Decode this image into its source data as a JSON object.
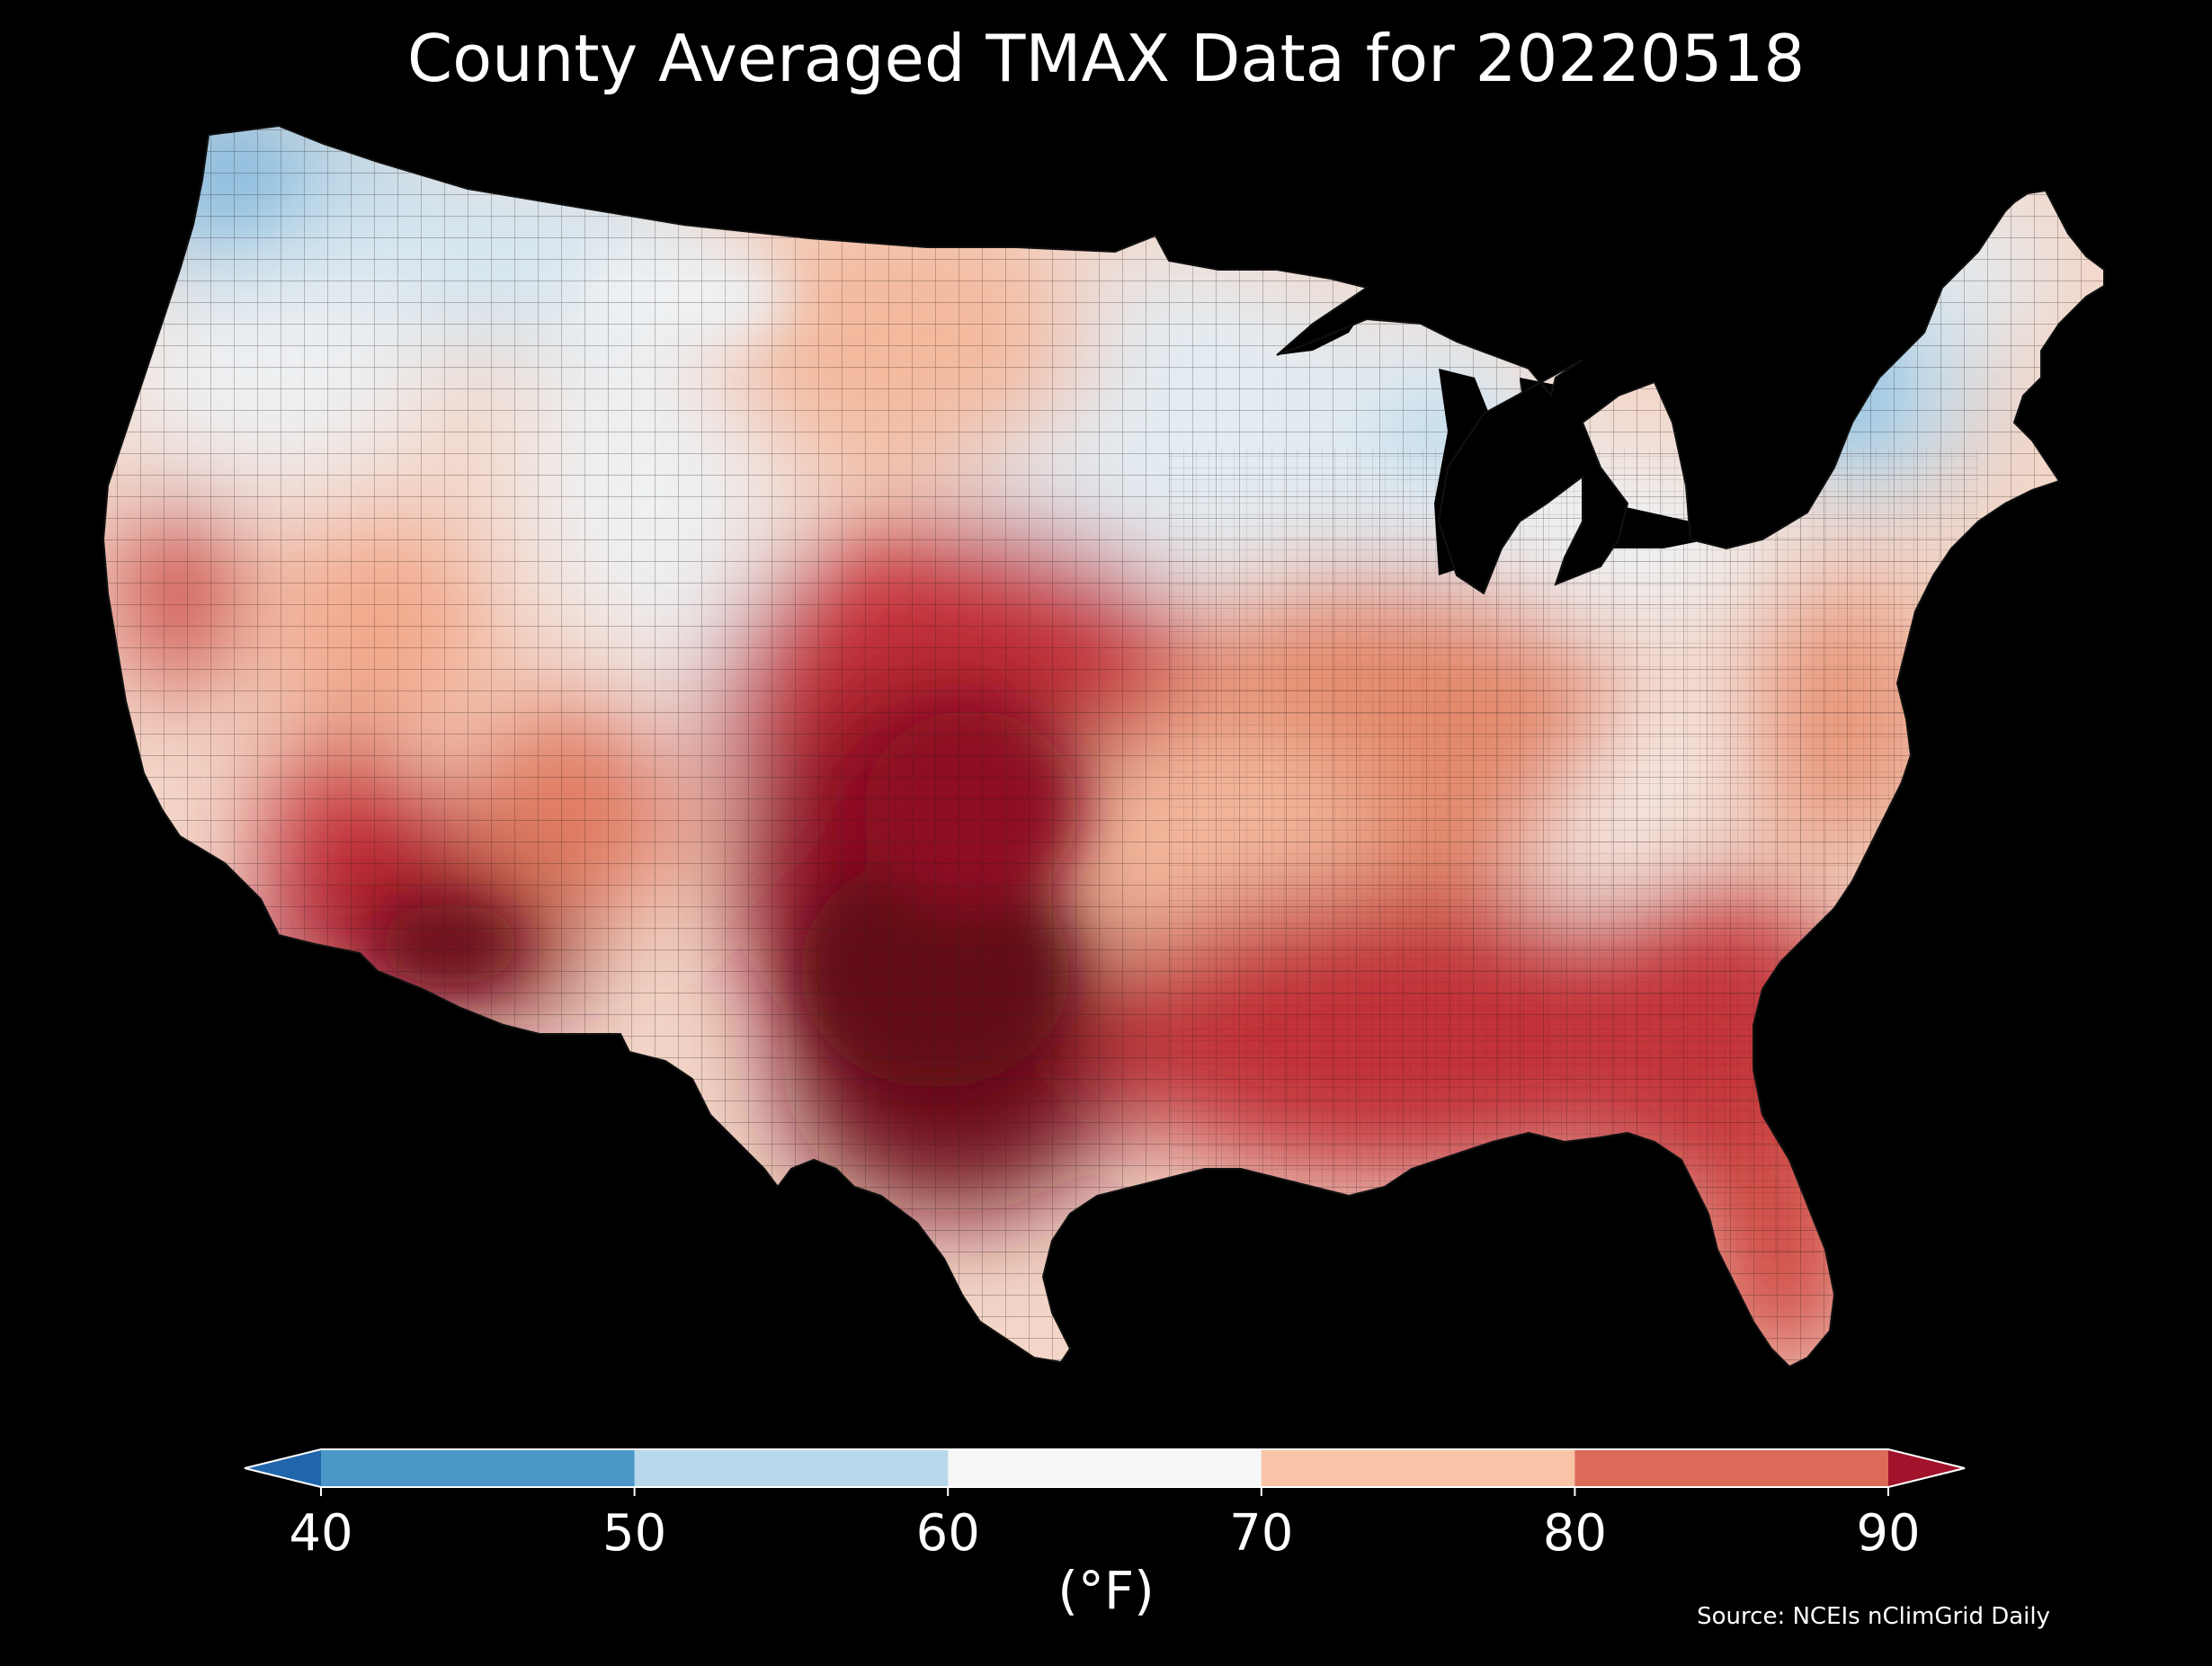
{
  "title": "County Averaged TMAX Data for 20220518",
  "map": {
    "region": "Contiguous United States",
    "background_color": "#000000",
    "county_edge_color": "#1a1a1a",
    "warm_core": "Texas / Oklahoma / Southwest deserts",
    "cool_areas": [
      "Pacific Northwest",
      "Northern Rockies",
      "Upper Midwest",
      "Northern New England"
    ]
  },
  "colorbar": {
    "ticks": [
      "40",
      "50",
      "60",
      "70",
      "80",
      "90"
    ],
    "extend": "both",
    "bins": [
      {
        "range": "< 40",
        "color": "#2166ac"
      },
      {
        "range": "40-50",
        "color": "#4b98c8"
      },
      {
        "range": "50-60",
        "color": "#b7d8ea"
      },
      {
        "range": "60-70",
        "color": "#f6f6f6"
      },
      {
        "range": "70-80",
        "color": "#f9c3a7"
      },
      {
        "range": "80-90",
        "color": "#dc6a58"
      },
      {
        "range": "> 90",
        "color": "#a1132a"
      }
    ],
    "units_label": "(°F)"
  },
  "source": "Source: NCEIs nClimGrid Daily"
}
